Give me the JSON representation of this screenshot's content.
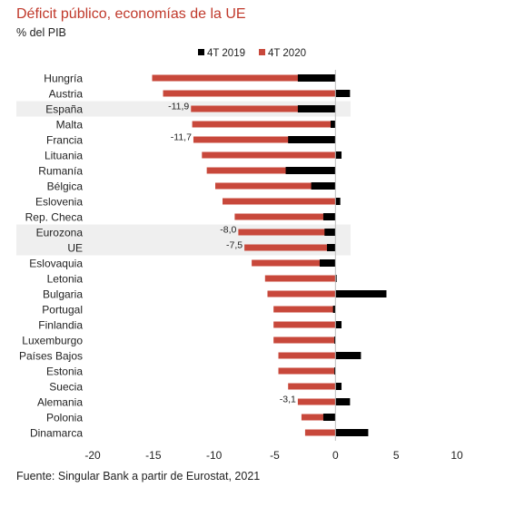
{
  "chart_data": {
    "type": "bar",
    "orientation": "horizontal",
    "title": "Déficit público, economías de la UE",
    "subtitle": "% del PIB",
    "source": "Fuente: Singular Bank a partir de Eurostat, 2021",
    "categories": [
      "Hungría",
      "Austria",
      "España",
      "Malta",
      "Francia",
      "Lituania",
      "Rumanía",
      "Bélgica",
      "Eslovenia",
      "Rep. Checa",
      "Eurozona",
      "UE",
      "Eslovaquia",
      "Letonia",
      "Bulgaria",
      "Portugal",
      "Finlandia",
      "Luxemburgo",
      "Países Bajos",
      "Estonia",
      "Suecia",
      "Alemania",
      "Polonia",
      "Dinamarca"
    ],
    "series": [
      {
        "name": "4T 2019",
        "color": "#000000",
        "values": [
          -3.1,
          1.2,
          -3.1,
          -0.4,
          -3.9,
          0.5,
          -4.1,
          -2.0,
          0.4,
          -1.0,
          -0.9,
          -0.7,
          -1.3,
          0.1,
          4.2,
          -0.2,
          0.5,
          -0.1,
          2.1,
          -0.1,
          0.5,
          1.2,
          -1.0,
          2.7
        ]
      },
      {
        "name": "4T 2020",
        "color": "#c8483b",
        "values": [
          -15.1,
          -14.2,
          -11.9,
          -11.8,
          -11.7,
          -11.0,
          -10.6,
          -9.9,
          -9.3,
          -8.3,
          -8.0,
          -7.5,
          -6.9,
          -5.8,
          -5.6,
          -5.1,
          -5.1,
          -5.1,
          -4.7,
          -4.7,
          -3.9,
          -3.1,
          -2.8,
          -2.5
        ]
      }
    ],
    "data_labels": [
      {
        "category": "España",
        "text": "-11,9"
      },
      {
        "category": "Francia",
        "text": "-11,7"
      },
      {
        "category": "Eurozona",
        "text": "-8,0"
      },
      {
        "category": "UE",
        "text": "-7,5"
      },
      {
        "category": "Alemania",
        "text": "-3,1"
      }
    ],
    "highlighted": [
      "España",
      "Eurozona",
      "UE"
    ],
    "xlim": [
      -20,
      10
    ],
    "xticks": [
      -20,
      -15,
      -10,
      -5,
      0,
      5,
      10
    ],
    "legend_position": "top"
  }
}
